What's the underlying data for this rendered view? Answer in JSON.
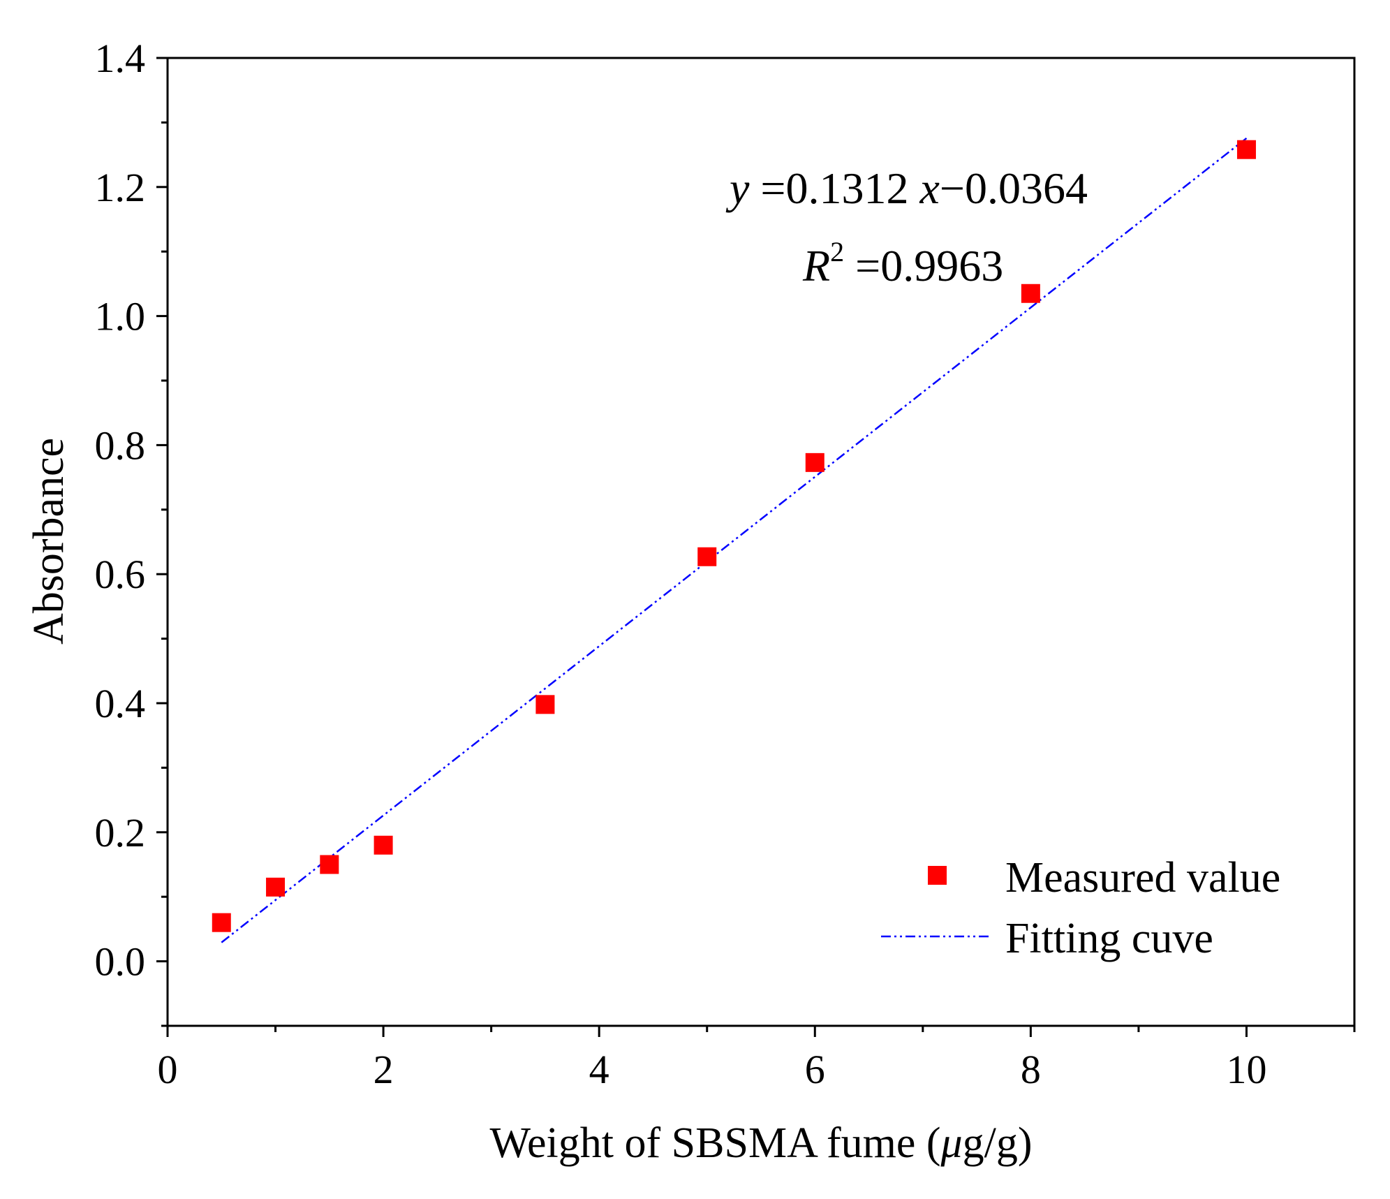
{
  "chart_data": {
    "type": "scatter",
    "title": "",
    "xlabel_prefix": "Weight of SBSMA fume (",
    "xlabel_mu": "μ",
    "xlabel_suffix": "g/g)",
    "ylabel": "Absorbance",
    "xlim": [
      0,
      11
    ],
    "ylim": [
      -0.1,
      1.4
    ],
    "x_major_ticks": [
      0,
      2,
      4,
      6,
      8,
      10
    ],
    "x_tick_labels": [
      "0",
      "2",
      "4",
      "6",
      "8",
      "10"
    ],
    "x_minor_ticks": [
      1,
      3,
      5,
      7,
      9,
      11
    ],
    "y_major_ticks": [
      0.0,
      0.2,
      0.4,
      0.6,
      0.8,
      1.0,
      1.2,
      1.4
    ],
    "y_tick_labels": [
      "0.0",
      "0.2",
      "0.4",
      "0.6",
      "0.8",
      "1.0",
      "1.2",
      "1.4"
    ],
    "y_minor_ticks": [
      -0.1,
      0.1,
      0.3,
      0.5,
      0.7,
      0.9,
      1.1,
      1.3
    ],
    "series": [
      {
        "name": "Measured value",
        "kind": "markers",
        "color": "#ff0000",
        "x": [
          0.5,
          1.0,
          1.5,
          2.0,
          3.5,
          5.0,
          6.0,
          8.0,
          10.0
        ],
        "y": [
          0.06,
          0.115,
          0.15,
          0.18,
          0.398,
          0.627,
          0.773,
          1.035,
          1.258
        ]
      },
      {
        "name": "Fitting cuve",
        "kind": "line",
        "style": "dash-dot-dot",
        "color": "#0000ff",
        "slope": 0.1312,
        "intercept": -0.0364,
        "x_range": [
          0.5,
          10.0
        ]
      }
    ],
    "annotation": {
      "eq_y": "y",
      "eq_mid": " =0.1312 ",
      "eq_x": "x",
      "eq_end": "−0.0364",
      "r2_r": "R",
      "r2_sup": "2",
      "r2_val": " =0.9963"
    },
    "legend": {
      "position": "bottom-right",
      "items": [
        "Measured value",
        "Fitting cuve"
      ]
    }
  }
}
